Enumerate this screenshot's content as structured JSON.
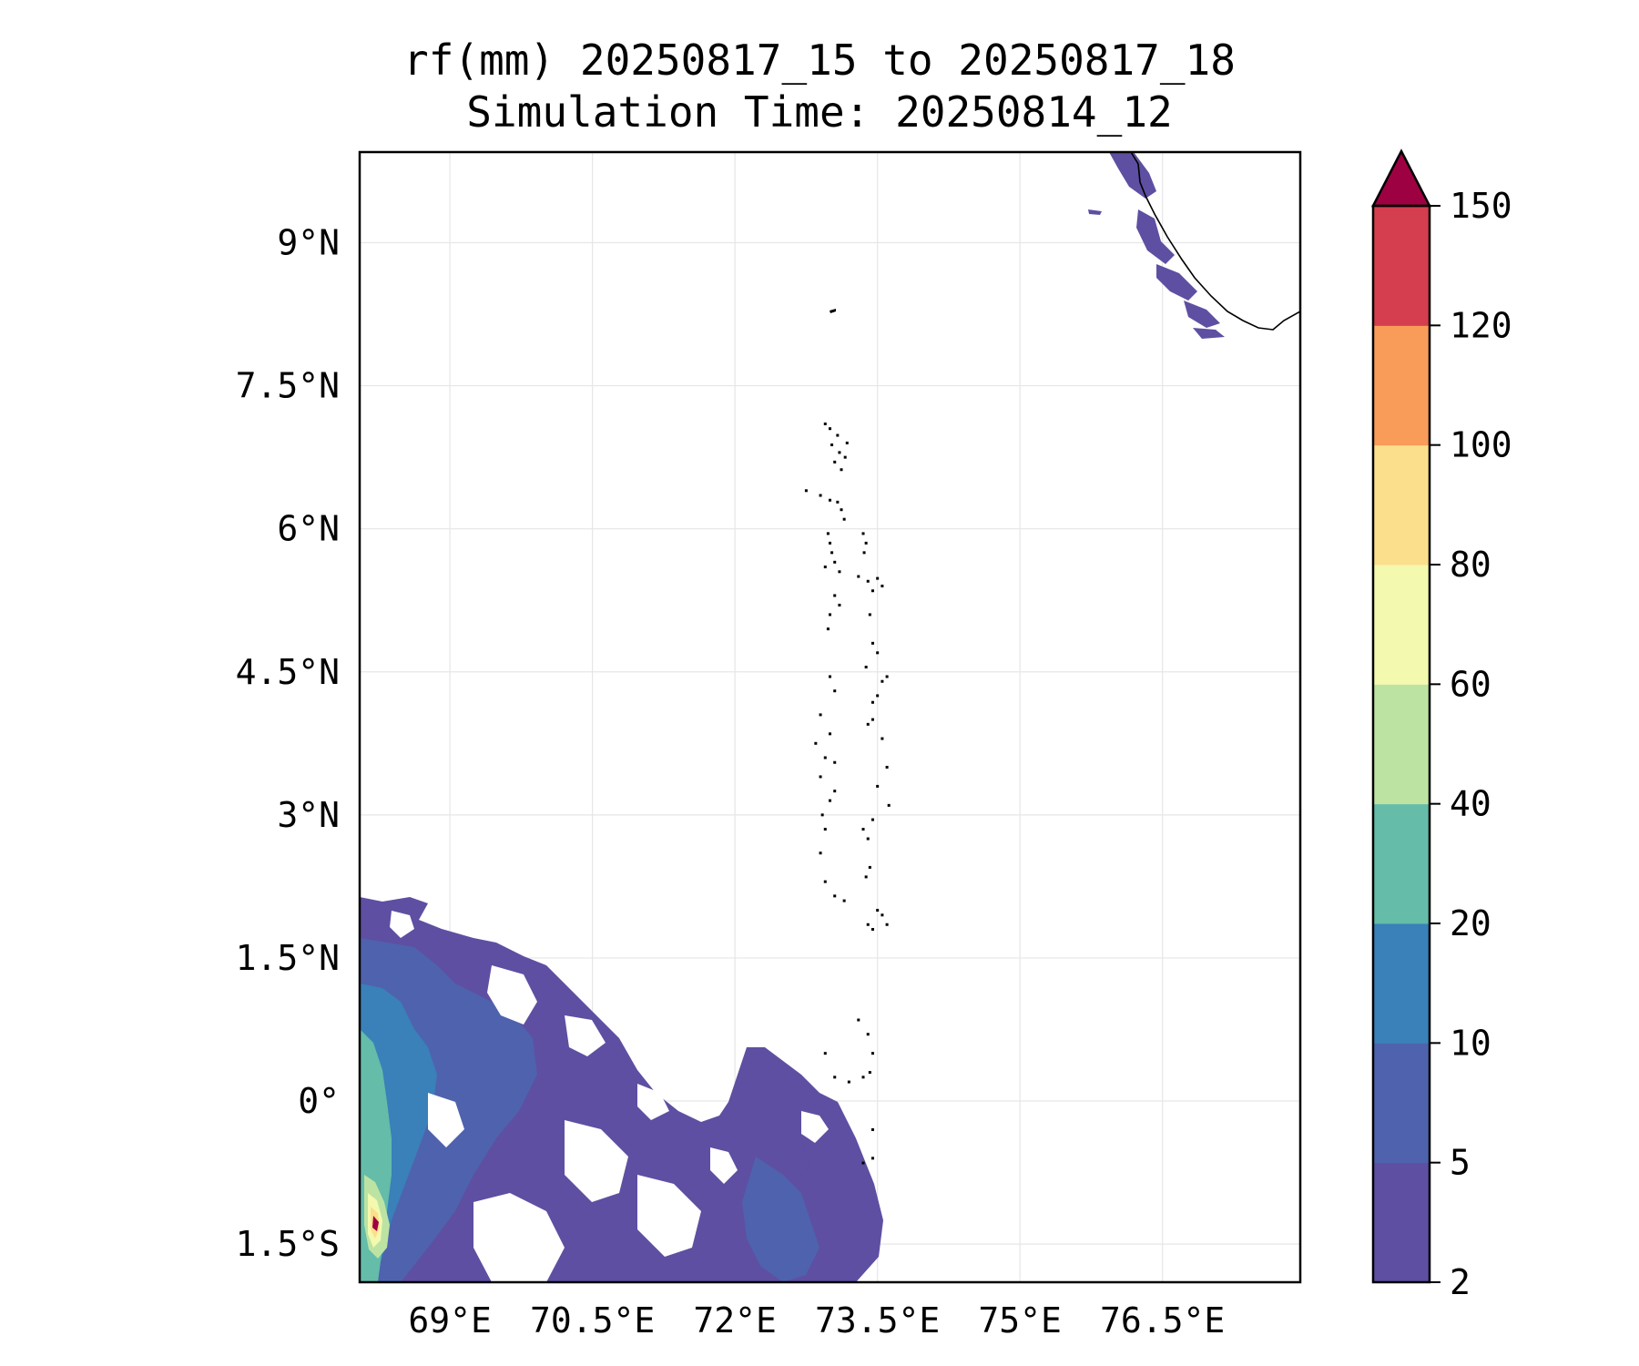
{
  "title": {
    "line1": "rf(mm) 20250817_15 to 20250817_18",
    "line2": "Simulation Time: 20250814_12"
  },
  "map": {
    "lon_ticks": [
      {
        "value": 69.0,
        "label": "69°E"
      },
      {
        "value": 70.5,
        "label": "70.5°E"
      },
      {
        "value": 72.0,
        "label": "72°E"
      },
      {
        "value": 73.5,
        "label": "73.5°E"
      },
      {
        "value": 75.0,
        "label": "75°E"
      },
      {
        "value": 76.5,
        "label": "76.5°E"
      }
    ],
    "lat_ticks": [
      {
        "value": 9.0,
        "label": "9°N"
      },
      {
        "value": 7.5,
        "label": "7.5°N"
      },
      {
        "value": 6.0,
        "label": "6°N"
      },
      {
        "value": 4.5,
        "label": "4.5°N"
      },
      {
        "value": 3.0,
        "label": "3°N"
      },
      {
        "value": 1.5,
        "label": "1.5°N"
      },
      {
        "value": 0.0,
        "label": "0°"
      },
      {
        "value": -1.5,
        "label": "1.5°S"
      }
    ],
    "extent": {
      "lon_min": 68.05,
      "lon_max": 77.95,
      "lat_min": -1.9,
      "lat_max": 9.95
    },
    "gridlines": true
  },
  "colorbar": {
    "levels": [
      "2",
      "5",
      "10",
      "20",
      "40",
      "60",
      "80",
      "100",
      "120",
      "150"
    ],
    "colors": [
      "#5e4fa2",
      "#4f62ad",
      "#3a80b9",
      "#64bca9",
      "#bde3a3",
      "#f3f9ae",
      "#fbdf8c",
      "#f99c59",
      "#d53e4f"
    ],
    "extend_color": "#9e0142",
    "extend": "max"
  },
  "chart_data": {
    "type": "heatmap",
    "title": "rf(mm) 20250817_15 to 20250817_18",
    "subtitle": "Simulation Time: 20250814_12",
    "xlabel": "",
    "ylabel": "",
    "xlim": [
      68.05,
      77.95
    ],
    "ylim": [
      -1.9,
      9.95
    ],
    "colorbar_levels": [
      2,
      5,
      10,
      20,
      40,
      60,
      80,
      100,
      120,
      150
    ],
    "max_region": {
      "lon": 68.3,
      "lat": -1.4,
      "value": "150+"
    }
  }
}
